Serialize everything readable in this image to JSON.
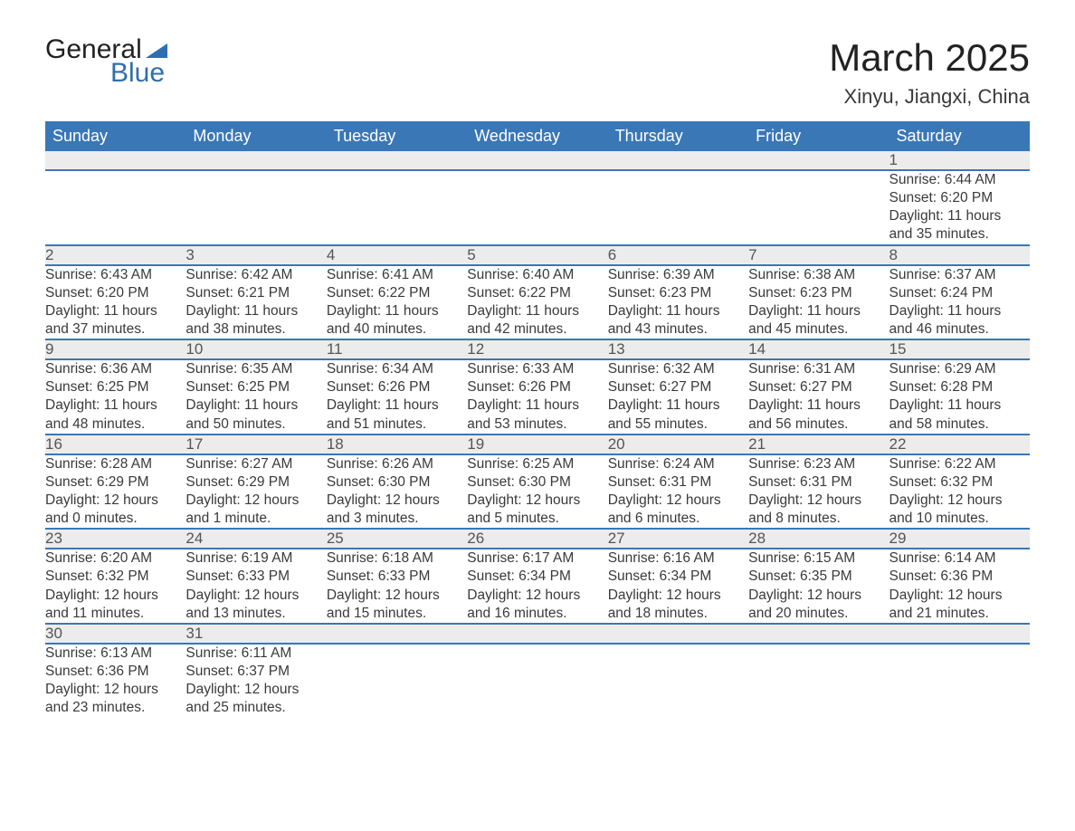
{
  "logo": {
    "general": "General",
    "blue": "Blue"
  },
  "title": "March 2025",
  "location": "Xinyu, Jiangxi, China",
  "colors": {
    "header_bg": "#3a77b6",
    "header_text": "#ffffff",
    "daynum_bg": "#ececec",
    "body_text": "#3a3a3a",
    "rule": "#3a77b6",
    "logo_blue": "#2f6eb0"
  },
  "fonts": {
    "title_size_pt": 32,
    "location_size_pt": 17,
    "header_size_pt": 14,
    "body_size_pt": 12
  },
  "columns": [
    "Sunday",
    "Monday",
    "Tuesday",
    "Wednesday",
    "Thursday",
    "Friday",
    "Saturday"
  ],
  "weeks": [
    {
      "nums": [
        "",
        "",
        "",
        "",
        "",
        "",
        "1"
      ],
      "info": [
        null,
        null,
        null,
        null,
        null,
        null,
        {
          "sunrise": "Sunrise: 6:44 AM",
          "sunset": "Sunset: 6:20 PM",
          "day1": "Daylight: 11 hours",
          "day2": "and 35 minutes."
        }
      ]
    },
    {
      "nums": [
        "2",
        "3",
        "4",
        "5",
        "6",
        "7",
        "8"
      ],
      "info": [
        {
          "sunrise": "Sunrise: 6:43 AM",
          "sunset": "Sunset: 6:20 PM",
          "day1": "Daylight: 11 hours",
          "day2": "and 37 minutes."
        },
        {
          "sunrise": "Sunrise: 6:42 AM",
          "sunset": "Sunset: 6:21 PM",
          "day1": "Daylight: 11 hours",
          "day2": "and 38 minutes."
        },
        {
          "sunrise": "Sunrise: 6:41 AM",
          "sunset": "Sunset: 6:22 PM",
          "day1": "Daylight: 11 hours",
          "day2": "and 40 minutes."
        },
        {
          "sunrise": "Sunrise: 6:40 AM",
          "sunset": "Sunset: 6:22 PM",
          "day1": "Daylight: 11 hours",
          "day2": "and 42 minutes."
        },
        {
          "sunrise": "Sunrise: 6:39 AM",
          "sunset": "Sunset: 6:23 PM",
          "day1": "Daylight: 11 hours",
          "day2": "and 43 minutes."
        },
        {
          "sunrise": "Sunrise: 6:38 AM",
          "sunset": "Sunset: 6:23 PM",
          "day1": "Daylight: 11 hours",
          "day2": "and 45 minutes."
        },
        {
          "sunrise": "Sunrise: 6:37 AM",
          "sunset": "Sunset: 6:24 PM",
          "day1": "Daylight: 11 hours",
          "day2": "and 46 minutes."
        }
      ]
    },
    {
      "nums": [
        "9",
        "10",
        "11",
        "12",
        "13",
        "14",
        "15"
      ],
      "info": [
        {
          "sunrise": "Sunrise: 6:36 AM",
          "sunset": "Sunset: 6:25 PM",
          "day1": "Daylight: 11 hours",
          "day2": "and 48 minutes."
        },
        {
          "sunrise": "Sunrise: 6:35 AM",
          "sunset": "Sunset: 6:25 PM",
          "day1": "Daylight: 11 hours",
          "day2": "and 50 minutes."
        },
        {
          "sunrise": "Sunrise: 6:34 AM",
          "sunset": "Sunset: 6:26 PM",
          "day1": "Daylight: 11 hours",
          "day2": "and 51 minutes."
        },
        {
          "sunrise": "Sunrise: 6:33 AM",
          "sunset": "Sunset: 6:26 PM",
          "day1": "Daylight: 11 hours",
          "day2": "and 53 minutes."
        },
        {
          "sunrise": "Sunrise: 6:32 AM",
          "sunset": "Sunset: 6:27 PM",
          "day1": "Daylight: 11 hours",
          "day2": "and 55 minutes."
        },
        {
          "sunrise": "Sunrise: 6:31 AM",
          "sunset": "Sunset: 6:27 PM",
          "day1": "Daylight: 11 hours",
          "day2": "and 56 minutes."
        },
        {
          "sunrise": "Sunrise: 6:29 AM",
          "sunset": "Sunset: 6:28 PM",
          "day1": "Daylight: 11 hours",
          "day2": "and 58 minutes."
        }
      ]
    },
    {
      "nums": [
        "16",
        "17",
        "18",
        "19",
        "20",
        "21",
        "22"
      ],
      "info": [
        {
          "sunrise": "Sunrise: 6:28 AM",
          "sunset": "Sunset: 6:29 PM",
          "day1": "Daylight: 12 hours",
          "day2": "and 0 minutes."
        },
        {
          "sunrise": "Sunrise: 6:27 AM",
          "sunset": "Sunset: 6:29 PM",
          "day1": "Daylight: 12 hours",
          "day2": "and 1 minute."
        },
        {
          "sunrise": "Sunrise: 6:26 AM",
          "sunset": "Sunset: 6:30 PM",
          "day1": "Daylight: 12 hours",
          "day2": "and 3 minutes."
        },
        {
          "sunrise": "Sunrise: 6:25 AM",
          "sunset": "Sunset: 6:30 PM",
          "day1": "Daylight: 12 hours",
          "day2": "and 5 minutes."
        },
        {
          "sunrise": "Sunrise: 6:24 AM",
          "sunset": "Sunset: 6:31 PM",
          "day1": "Daylight: 12 hours",
          "day2": "and 6 minutes."
        },
        {
          "sunrise": "Sunrise: 6:23 AM",
          "sunset": "Sunset: 6:31 PM",
          "day1": "Daylight: 12 hours",
          "day2": "and 8 minutes."
        },
        {
          "sunrise": "Sunrise: 6:22 AM",
          "sunset": "Sunset: 6:32 PM",
          "day1": "Daylight: 12 hours",
          "day2": "and 10 minutes."
        }
      ]
    },
    {
      "nums": [
        "23",
        "24",
        "25",
        "26",
        "27",
        "28",
        "29"
      ],
      "info": [
        {
          "sunrise": "Sunrise: 6:20 AM",
          "sunset": "Sunset: 6:32 PM",
          "day1": "Daylight: 12 hours",
          "day2": "and 11 minutes."
        },
        {
          "sunrise": "Sunrise: 6:19 AM",
          "sunset": "Sunset: 6:33 PM",
          "day1": "Daylight: 12 hours",
          "day2": "and 13 minutes."
        },
        {
          "sunrise": "Sunrise: 6:18 AM",
          "sunset": "Sunset: 6:33 PM",
          "day1": "Daylight: 12 hours",
          "day2": "and 15 minutes."
        },
        {
          "sunrise": "Sunrise: 6:17 AM",
          "sunset": "Sunset: 6:34 PM",
          "day1": "Daylight: 12 hours",
          "day2": "and 16 minutes."
        },
        {
          "sunrise": "Sunrise: 6:16 AM",
          "sunset": "Sunset: 6:34 PM",
          "day1": "Daylight: 12 hours",
          "day2": "and 18 minutes."
        },
        {
          "sunrise": "Sunrise: 6:15 AM",
          "sunset": "Sunset: 6:35 PM",
          "day1": "Daylight: 12 hours",
          "day2": "and 20 minutes."
        },
        {
          "sunrise": "Sunrise: 6:14 AM",
          "sunset": "Sunset: 6:36 PM",
          "day1": "Daylight: 12 hours",
          "day2": "and 21 minutes."
        }
      ]
    },
    {
      "nums": [
        "30",
        "31",
        "",
        "",
        "",
        "",
        ""
      ],
      "info": [
        {
          "sunrise": "Sunrise: 6:13 AM",
          "sunset": "Sunset: 6:36 PM",
          "day1": "Daylight: 12 hours",
          "day2": "and 23 minutes."
        },
        {
          "sunrise": "Sunrise: 6:11 AM",
          "sunset": "Sunset: 6:37 PM",
          "day1": "Daylight: 12 hours",
          "day2": "and 25 minutes."
        },
        null,
        null,
        null,
        null,
        null
      ]
    }
  ]
}
